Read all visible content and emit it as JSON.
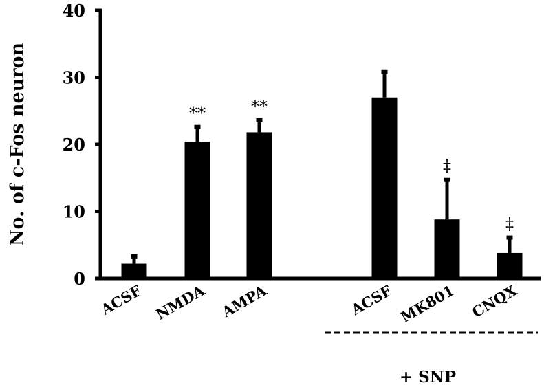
{
  "chart_data": {
    "type": "bar",
    "title": "",
    "xlabel": "",
    "ylabel": "No. of c-Fos neuron",
    "ylim": [
      0,
      40
    ],
    "yticks": [
      "0",
      "10",
      "20",
      "30",
      "40"
    ],
    "categories": [
      "ACSF",
      "NMDA",
      "AMPA",
      "ACSF",
      "MK801",
      "CNQX"
    ],
    "values": [
      2.2,
      20.4,
      21.8,
      27.0,
      8.8,
      3.8
    ],
    "error_upper": [
      3.5,
      22.8,
      23.8,
      31.0,
      14.9,
      6.3
    ],
    "annotations": [
      "",
      "**",
      "**",
      "",
      "‡",
      "‡"
    ],
    "group_label": "+ SNP",
    "group_members": [
      3,
      4,
      5
    ],
    "bar_color": "#000000",
    "grid": false
  }
}
